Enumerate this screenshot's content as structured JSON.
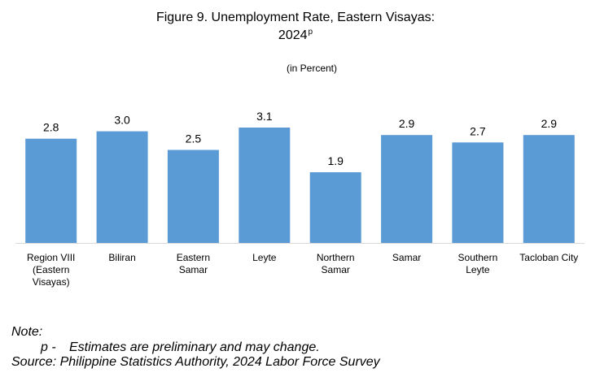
{
  "title": {
    "line1": "Figure 9. Unemployment Rate, Eastern Visayas:",
    "line2_main": "2024",
    "line2_sup": "p"
  },
  "subtitle": "(in Percent)",
  "chart_data": {
    "type": "bar",
    "title": "Figure 9. Unemployment Rate, Eastern Visayas: 2024p",
    "subtitle": "(in Percent)",
    "categories": [
      [
        "Region VIII",
        "(Eastern",
        "Visayas)"
      ],
      [
        "Biliran"
      ],
      [
        "Eastern",
        "Samar"
      ],
      [
        "Leyte"
      ],
      [
        "Northern",
        "Samar"
      ],
      [
        "Samar"
      ],
      [
        "Southern",
        "Leyte"
      ],
      [
        "Tacloban City"
      ]
    ],
    "values": [
      2.8,
      3.0,
      2.5,
      3.1,
      1.9,
      2.9,
      2.7,
      2.9
    ],
    "value_labels": [
      "2.8",
      "3.0",
      "2.5",
      "3.1",
      "1.9",
      "2.9",
      "2.7",
      "2.9"
    ],
    "ylim": [
      0,
      3.1
    ],
    "grid": false,
    "bar_color": "#5B9BD5",
    "axis_color": "#D9D9D9"
  },
  "notes": {
    "heading": "Note:",
    "item_marker": "p -",
    "item_text": "Estimates are preliminary and may change.",
    "source": "Source: Philippine Statistics Authority, 2024 Labor Force Survey"
  }
}
